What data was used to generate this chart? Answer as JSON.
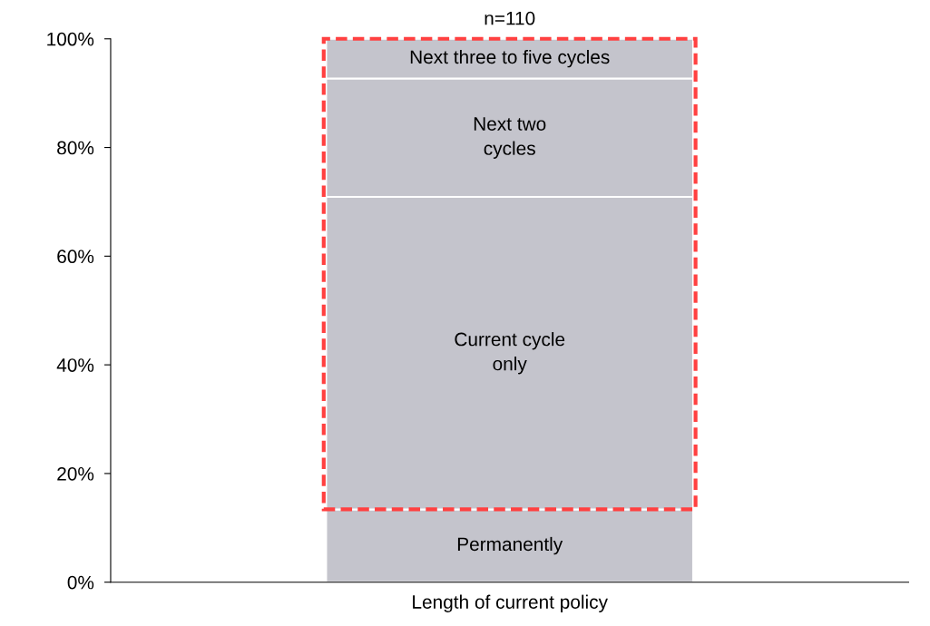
{
  "chart_data": {
    "type": "bar",
    "stacked": true,
    "categories": [
      "Length of current policy"
    ],
    "series": [
      {
        "name": "Permanently",
        "color": "#c4c4cc",
        "values": [
          13.4
        ]
      },
      {
        "name": "Current cycle\nonly",
        "color": "#c4c4cc",
        "values": [
          57.5
        ]
      },
      {
        "name": "Next two\ncycles",
        "color": "#c4c4cc",
        "values": [
          21.8
        ]
      },
      {
        "name": "Next three to five cycles",
        "color": "#c4c4cc",
        "values": [
          7.3
        ]
      }
    ],
    "ylim": [
      0,
      100
    ],
    "yticks": [
      {
        "value": 0,
        "label": "0%"
      },
      {
        "value": 20,
        "label": "20%"
      },
      {
        "value": 40,
        "label": "40%"
      },
      {
        "value": 60,
        "label": "60%"
      },
      {
        "value": 80,
        "label": "80%"
      },
      {
        "value": 100,
        "label": "100%"
      }
    ],
    "annotations": [
      {
        "text": "n=110",
        "x": "Length of current policy",
        "y": 100
      }
    ],
    "grid": false,
    "legend": false
  }
}
